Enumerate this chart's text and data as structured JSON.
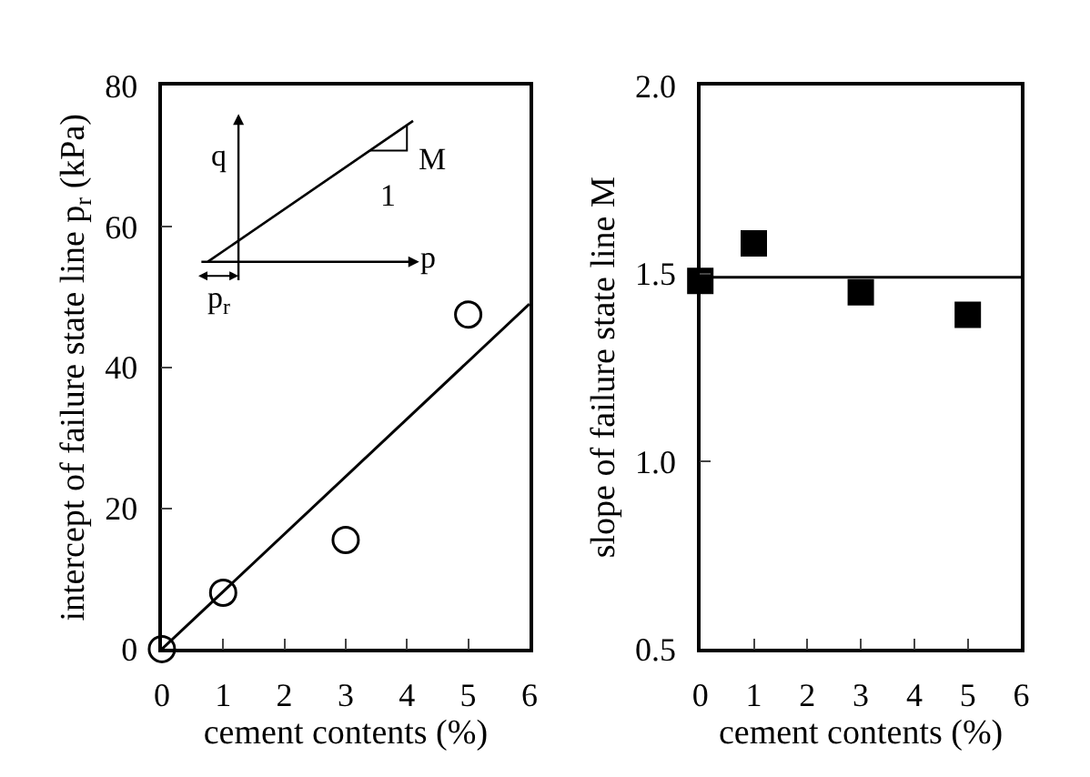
{
  "chart_data": [
    {
      "type": "scatter",
      "xlabel": "cement contents (%)",
      "ylabel": "intercept of failure state line p$_{r}$ (kPa)",
      "xlim": [
        0,
        6
      ],
      "xticks": [
        0,
        1,
        2,
        3,
        4,
        5,
        6
      ],
      "ylim": [
        0,
        80
      ],
      "yticks": [
        0,
        20,
        40,
        60,
        80
      ],
      "annotations": [
        "q",
        "p",
        "M",
        "1",
        "p$_{r}$"
      ],
      "series": [
        {
          "marker": "circle",
          "color": "#000000",
          "x": [
            0,
            1,
            3,
            5
          ],
          "values": [
            0,
            8,
            15.5,
            47.5
          ]
        },
        {
          "type": "line",
          "marker": "none",
          "color": "#000000",
          "x": [
            0,
            6
          ],
          "values": [
            0,
            49
          ]
        }
      ]
    },
    {
      "type": "scatter",
      "xlabel": "cement contents (%)",
      "ylabel": "slope of failure state line M",
      "xlim": [
        0,
        6
      ],
      "xticks": [
        0,
        1,
        2,
        3,
        4,
        5,
        6
      ],
      "ylim": [
        0.5,
        2.0
      ],
      "yticks": [
        {
          "value": 0.5,
          "label": "0.5"
        },
        {
          "value": 1.0,
          "label": "1.0"
        },
        {
          "value": 1.5,
          "label": "1.5"
        },
        {
          "value": 2.0,
          "label": "2.0"
        }
      ],
      "marker": "square",
      "ref_lines": [
        {
          "axis": "y",
          "value": 1.49,
          "color": "#000000"
        }
      ],
      "series": [
        {
          "color": "#000000",
          "x": [
            0,
            1,
            3,
            5
          ],
          "values": [
            1.48,
            1.58,
            1.45,
            1.39
          ]
        }
      ]
    }
  ]
}
